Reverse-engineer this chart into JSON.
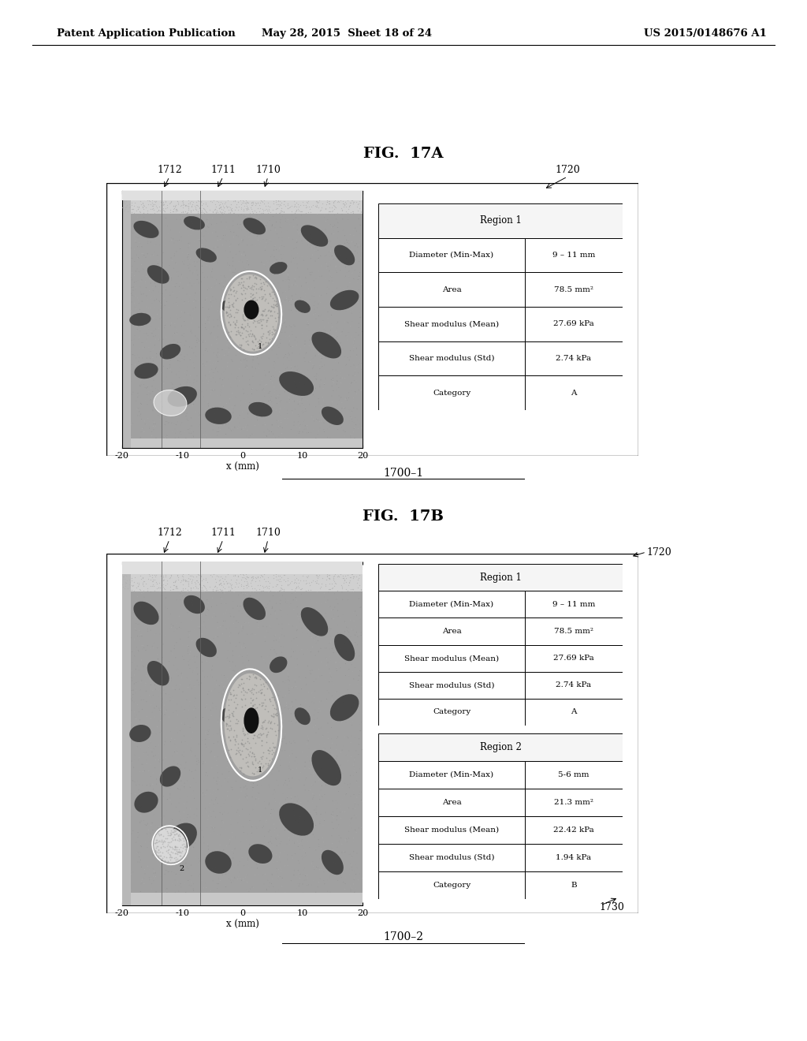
{
  "header_left": "Patent Application Publication",
  "header_mid": "May 28, 2015  Sheet 18 of 24",
  "header_right": "US 2015/0148676 A1",
  "fig_title_a": "FIG.  17A",
  "fig_title_b": "FIG.  17B",
  "label_a": "1700–1",
  "label_b": "1700–2",
  "xlabel": "x (mm)",
  "region1_title": "Region 1",
  "region1_rows": [
    [
      "Diameter (Min-Max)",
      "9 – 11 mm"
    ],
    [
      "Area",
      "78.5 mm²"
    ],
    [
      "Shear modulus (Mean)",
      "27.69 kPa"
    ],
    [
      "Shear modulus (Std)",
      "2.74 kPa"
    ],
    [
      "Category",
      "A"
    ]
  ],
  "region2_title": "Region 2",
  "region2_rows": [
    [
      "Diameter (Min-Max)",
      "5-6 mm"
    ],
    [
      "Area",
      "21.3 mm²"
    ],
    [
      "Shear modulus (Mean)",
      "22.42 kPa"
    ],
    [
      "Shear modulus (Std)",
      "1.94 kPa"
    ],
    [
      "Category",
      "B"
    ]
  ],
  "bg_color": "#ffffff"
}
